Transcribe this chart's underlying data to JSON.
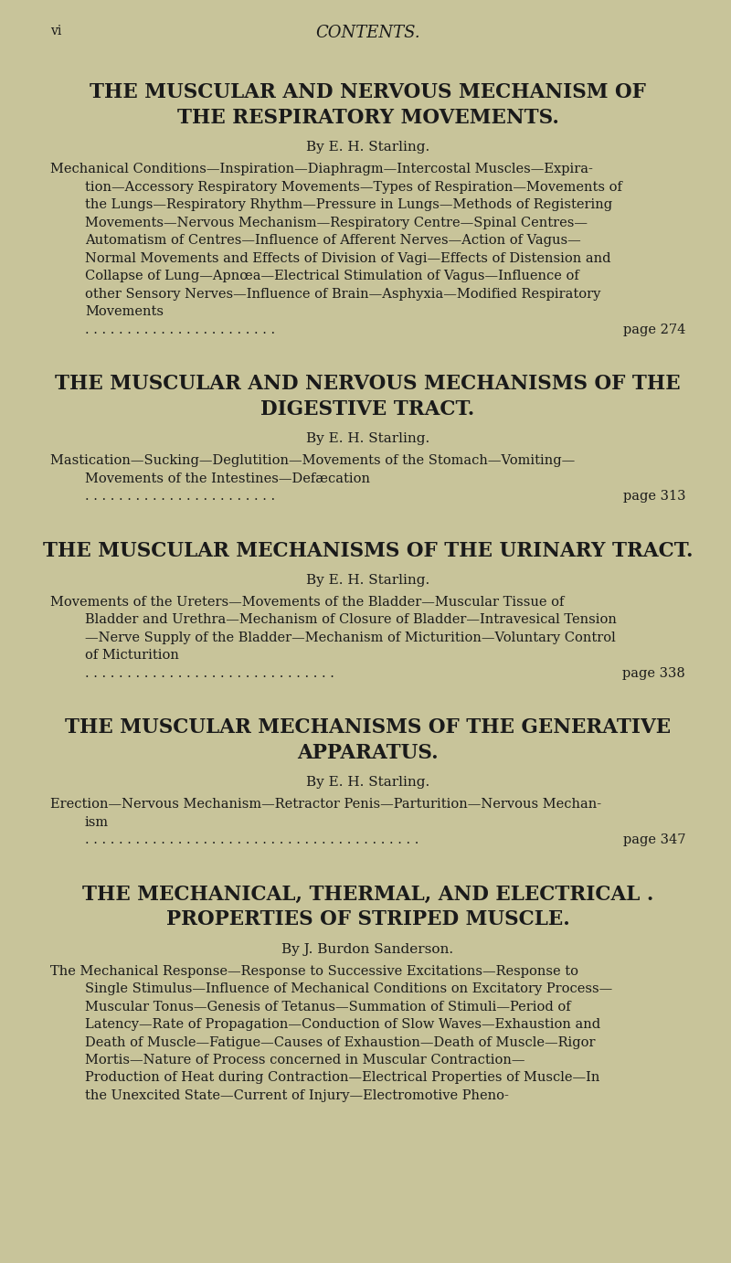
{
  "bg_color": "#c8c49a",
  "text_color": "#1a1a1a",
  "page_label": "vi",
  "page_label_size": 10,
  "header_italic": "CONTENTS.",
  "header_size": 13,
  "sections": [
    {
      "title_lines": [
        "THE MUSCULAR AND NERVOUS MECHANISM OF",
        "THE RESPIRATORY MOVEMENTS."
      ],
      "title_size": 15.5,
      "byline": "By E. H. Starling.",
      "byline_size": 11,
      "body_lines": [
        {
          "text": "Mechanical Conditions—Inspiration—Diaphragm—Intercostal Muscles—Expira-",
          "indent": false
        },
        {
          "text": "tion—Accessory Respiratory Movements—Types of Respiration—Movements of",
          "indent": true
        },
        {
          "text": "the Lungs—Respiratory Rhythm—Pressure in Lungs—Methods of Registering",
          "indent": true
        },
        {
          "text": "Movements—Nervous Mechanism—Respiratory Centre—Spinal Centres—",
          "indent": true
        },
        {
          "text": "Automatism of Centres—Influence of Afferent Nerves—Action of Vagus—",
          "indent": true
        },
        {
          "text": "Normal Movements and Effects of Division of Vagi—Effects of Distension and",
          "indent": true
        },
        {
          "text": "Collapse of Lung—Apnœa—Electrical Stimulation of Vagus—Influence of",
          "indent": true
        },
        {
          "text": "other Sensory Nerves—Influence of Brain—Asphyxia—Modified Respiratory",
          "indent": true
        },
        {
          "text": "Movements",
          "indent": true
        }
      ],
      "body_size": 10.5,
      "page_ref": "page 274",
      "dots": ". . . . . . . . . . . . . . . . . . . . . . ."
    },
    {
      "title_lines": [
        "THE MUSCULAR AND NERVOUS MECHANISMS OF THE",
        "DIGESTIVE TRACT."
      ],
      "title_size": 15.5,
      "byline": "By E. H. Starling.",
      "byline_size": 11,
      "body_lines": [
        {
          "text": "Mastication—Sucking—Deglutition—Movements of the Stomach—Vomiting—",
          "indent": false
        },
        {
          "text": "Movements of the Intestines—Defæcation",
          "indent": true
        }
      ],
      "body_size": 10.5,
      "page_ref": "page 313",
      "dots": ". . . . . . . . . . . . . . . . . . . . . . ."
    },
    {
      "title_lines": [
        "THE MUSCULAR MECHANISMS OF THE URINARY TRACT."
      ],
      "title_size": 15.5,
      "byline": "By E. H. Starling.",
      "byline_size": 11,
      "body_lines": [
        {
          "text": "Movements of the Ureters—Movements of the Bladder—Muscular Tissue of",
          "indent": false
        },
        {
          "text": "Bladder and Urethra—Mechanism of Closure of Bladder—Intravesical Tension",
          "indent": true
        },
        {
          "text": "—Nerve Supply of the Bladder—Mechanism of Micturition—Voluntary Control",
          "indent": true
        },
        {
          "text": "of Micturition",
          "indent": true
        }
      ],
      "body_size": 10.5,
      "page_ref": "page 338",
      "dots": ". . . . . . . . . . . . . . . . . . . . . . . . . . . . . ."
    },
    {
      "title_lines": [
        "THE MUSCULAR MECHANISMS OF THE GENERATIVE",
        "APPARATUS."
      ],
      "title_size": 15.5,
      "byline": "By E. H. Starling.",
      "byline_size": 11,
      "body_lines": [
        {
          "text": "Erection—Nervous Mechanism—Retractor Penis—Parturition—Nervous Mechan-",
          "indent": false
        },
        {
          "text": "ism",
          "indent": true
        }
      ],
      "body_size": 10.5,
      "page_ref": "page 347",
      "dots": ". . . . . . . . . . . . . . . . . . . . . . . . . . . . . . . . . . . . . . . ."
    },
    {
      "title_lines": [
        "THE MECHANICAL, THERMAL, AND ELECTRICAL .",
        "PROPERTIES OF STRIPED MUSCLE."
      ],
      "title_size": 15.5,
      "byline": "By J. Burdon Sanderson.",
      "byline_size": 11,
      "body_lines": [
        {
          "text": "The Mechanical Response—Response to Successive Excitations—Response to",
          "indent": false
        },
        {
          "text": "Single Stimulus—Influence of Mechanical Conditions on Excitatory Process—",
          "indent": true
        },
        {
          "text": "Muscular Tonus—Genesis of Tetanus—Summation of Stimuli—Period of",
          "indent": true
        },
        {
          "text": "Latency—Rate of Propagation—Conduction of Slow Waves—Exhaustion and",
          "indent": true
        },
        {
          "text": "Death of Muscle—Fatigue—Causes of Exhaustion—Death of Muscle—Rigor",
          "indent": true
        },
        {
          "text": "Mortis—Nature of Process concerned in Muscular Contraction—",
          "indent": true
        },
        {
          "text": "Production of Heat during Contraction—Electrical Properties of Muscle—In",
          "indent": true
        },
        {
          "text": "the Unexcited State—Current of Injury—Electromotive Pheno-",
          "indent": true
        }
      ],
      "body_size": 10.5,
      "page_ref": "",
      "dots": ""
    }
  ]
}
